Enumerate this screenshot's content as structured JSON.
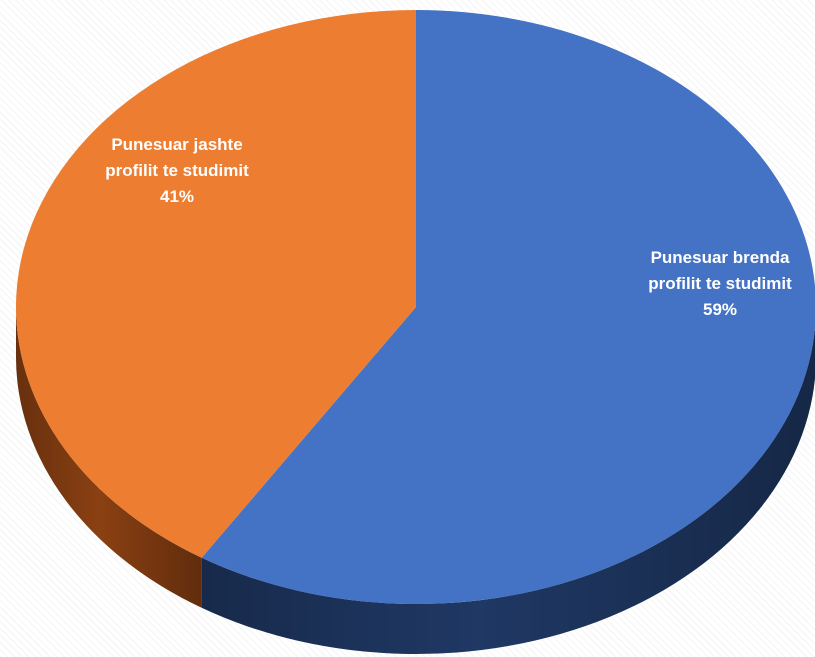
{
  "chart_data": {
    "type": "pie",
    "style": "3d",
    "slices": [
      {
        "label": "Punesuar brenda profilit te studimit",
        "label_lines": [
          "Punesuar brenda",
          "profilit te studimit"
        ],
        "value": 59,
        "value_label": "59%",
        "color": "#4472c4",
        "side_color": "#1f3864"
      },
      {
        "label": "Punesuar jashte profilit te studimit",
        "label_lines": [
          "Punesuar jashte",
          "profilit te studimit"
        ],
        "value": 41,
        "value_label": "41%",
        "color": "#ed7d31",
        "side_color": "#8a4012"
      }
    ]
  }
}
